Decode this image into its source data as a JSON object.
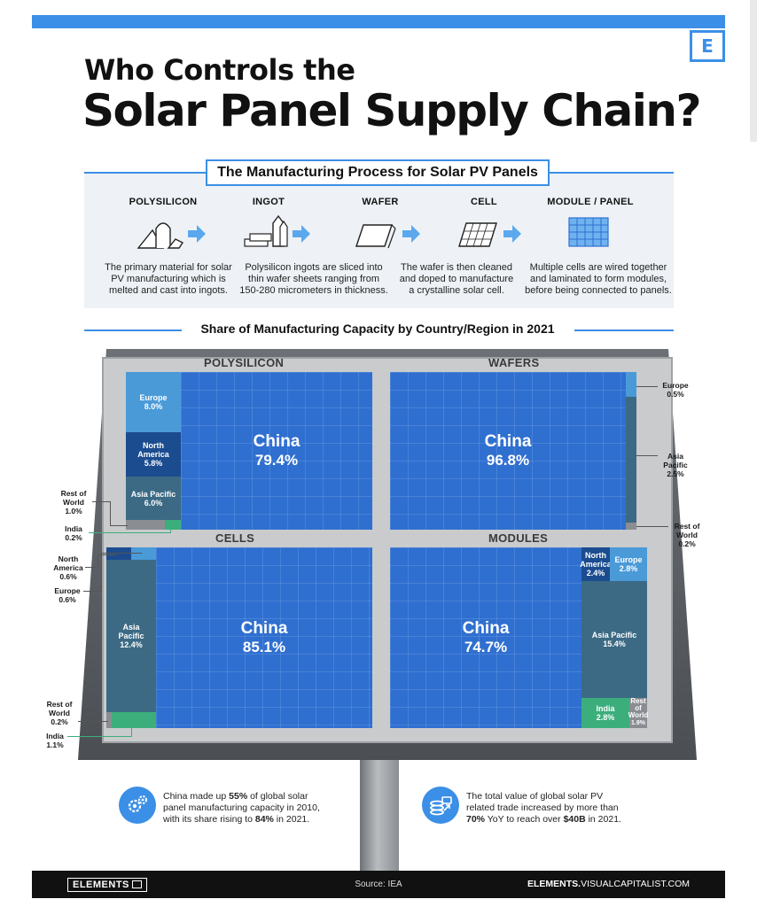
{
  "header": {
    "logo": "E",
    "title_line1": "Who Controls the",
    "title_line2": "Solar Panel Supply Chain?"
  },
  "process": {
    "title": "The Manufacturing Process for Solar PV Panels",
    "steps": [
      {
        "name": "POLYSILICON",
        "desc_lines": [
          "The primary material for solar",
          "PV manufacturing which is",
          "melted and cast into ingots."
        ]
      },
      {
        "name": "INGOT",
        "desc_lines": [
          "Polysilicon ingots are sliced into",
          "thin wafer sheets ranging from",
          "150-280 micrometers in thickness."
        ]
      },
      {
        "name": "WAFER",
        "desc_lines": [
          "The wafer is then cleaned",
          "and doped to manufacture",
          "a crystalline solar cell."
        ]
      },
      {
        "name": "CELL",
        "desc_lines": [
          "",
          "",
          ""
        ]
      },
      {
        "name": "MODULE / PANEL",
        "desc_lines": [
          "Multiple cells are wired together",
          "and laminated to form modules,",
          "before being connected to panels."
        ]
      }
    ]
  },
  "chart_data": {
    "type": "treemap",
    "title": "Share of Manufacturing Capacity by Country/Region in 2021",
    "unit": "%",
    "panels": [
      {
        "name": "POLYSILICON",
        "segments": [
          {
            "name": "China",
            "value": 79.4,
            "label": "79.4%"
          },
          {
            "name": "Europe",
            "value": 8.0,
            "label": "8.0%"
          },
          {
            "name": "North America",
            "value": 5.8,
            "label": "5.8%"
          },
          {
            "name": "Asia Pacific",
            "value": 6.0,
            "label": "6.0%"
          },
          {
            "name": "Rest of World",
            "value": 1.0,
            "label": "1.0%"
          },
          {
            "name": "India",
            "value": 0.2,
            "label": "0.2%"
          }
        ]
      },
      {
        "name": "WAFERS",
        "segments": [
          {
            "name": "China",
            "value": 96.8,
            "label": "96.8%"
          },
          {
            "name": "Europe",
            "value": 0.5,
            "label": "0.5%"
          },
          {
            "name": "Asia Pacific",
            "value": 2.5,
            "label": "2.5%"
          },
          {
            "name": "Rest of World",
            "value": 0.2,
            "label": "0.2%"
          }
        ]
      },
      {
        "name": "CELLS",
        "segments": [
          {
            "name": "China",
            "value": 85.1,
            "label": "85.1%"
          },
          {
            "name": "North America",
            "value": 0.6,
            "label": "0.6%"
          },
          {
            "name": "Europe",
            "value": 0.6,
            "label": "0.6%"
          },
          {
            "name": "Asia Pacific",
            "value": 12.4,
            "label": "12.4%"
          },
          {
            "name": "Rest of World",
            "value": 0.2,
            "label": "0.2%"
          },
          {
            "name": "India",
            "value": 1.1,
            "label": "1.1%"
          }
        ]
      },
      {
        "name": "MODULES",
        "segments": [
          {
            "name": "China",
            "value": 74.7,
            "label": "74.7%"
          },
          {
            "name": "North America",
            "value": 2.4,
            "label": "2.4%"
          },
          {
            "name": "Europe",
            "value": 2.8,
            "label": "2.8%"
          },
          {
            "name": "Asia Pacific",
            "value": 15.4,
            "label": "15.4%"
          },
          {
            "name": "India",
            "value": 2.8,
            "label": "2.8%"
          },
          {
            "name": "Rest of World",
            "value": 1.9,
            "label": "1.9%"
          }
        ]
      }
    ],
    "colors": {
      "China": "#2f6fd0",
      "Europe": "#4a9ad8",
      "North America": "#1b4c8f",
      "Asia Pacific": "#3c6a84",
      "Rest of World": "#8a8d92",
      "India": "#3cae7c"
    }
  },
  "facts": [
    {
      "icon": "gears-icon",
      "parts": [
        "China made up ",
        "55%",
        " of global solar",
        "panel manufacturing capacity in 2010,",
        "with its share rising to ",
        "84%",
        " in 2021."
      ]
    },
    {
      "icon": "money-icon",
      "parts": [
        "The total value of global solar PV",
        "related trade increased by more than",
        "70%",
        " YoY to reach over ",
        "$40B",
        " in 2021."
      ]
    }
  ],
  "footer": {
    "brand": "ELEMENTS",
    "source": "Source: IEA",
    "site_bold": "ELEMENTS.",
    "site_rest": "VISUALCAPITALIST.COM"
  }
}
